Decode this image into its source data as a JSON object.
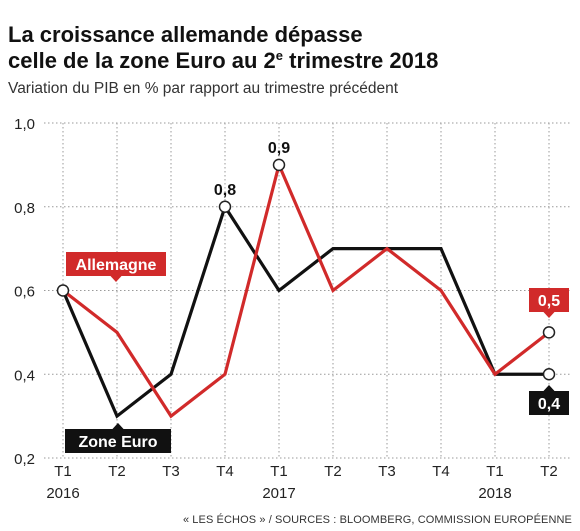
{
  "title": {
    "line1": "La croissance allemande dépasse",
    "line2_before": "celle de la zone Euro au 2",
    "line2_sup": "e",
    "line2_after": " trimestre 2018"
  },
  "subtitle": "Variation du PIB en % par rapport au trimestre précédent",
  "source": "« LES ÉCHOS » / SOURCES : BLOOMBERG, COMMISSION EUROPÉENNE",
  "chart_data": {
    "type": "line",
    "categories": [
      "T1",
      "T2",
      "T3",
      "T4",
      "T1",
      "T2",
      "T3",
      "T4",
      "T1",
      "T2"
    ],
    "years": [
      {
        "label": "2016",
        "index": 0
      },
      {
        "label": "2017",
        "index": 4
      },
      {
        "label": "2018",
        "index": 8
      }
    ],
    "ylim": [
      0.2,
      1.0
    ],
    "yticks": [
      0.2,
      0.4,
      0.6,
      0.8,
      1.0
    ],
    "ytick_labels": [
      "0,2",
      "0,4",
      "0,6",
      "0,8",
      "1,0"
    ],
    "grid": true,
    "series": [
      {
        "name": "Zone Euro",
        "color": "#111111",
        "values": [
          0.6,
          0.3,
          0.4,
          0.8,
          0.6,
          0.7,
          0.7,
          0.7,
          0.4,
          0.4
        ]
      },
      {
        "name": "Allemagne",
        "color": "#d12a2a",
        "values": [
          0.6,
          0.5,
          0.3,
          0.4,
          0.9,
          0.6,
          0.7,
          0.6,
          0.4,
          0.5
        ]
      }
    ],
    "annotations": [
      {
        "text": "0,8",
        "index": 3,
        "value": 0.8
      },
      {
        "text": "0,9",
        "index": 4,
        "value": 0.9
      },
      {
        "text": "0,5",
        "index": 9,
        "value": 0.5,
        "series": "Allemagne"
      },
      {
        "text": "0,4",
        "index": 9,
        "value": 0.4,
        "series": "Zone Euro"
      }
    ]
  }
}
